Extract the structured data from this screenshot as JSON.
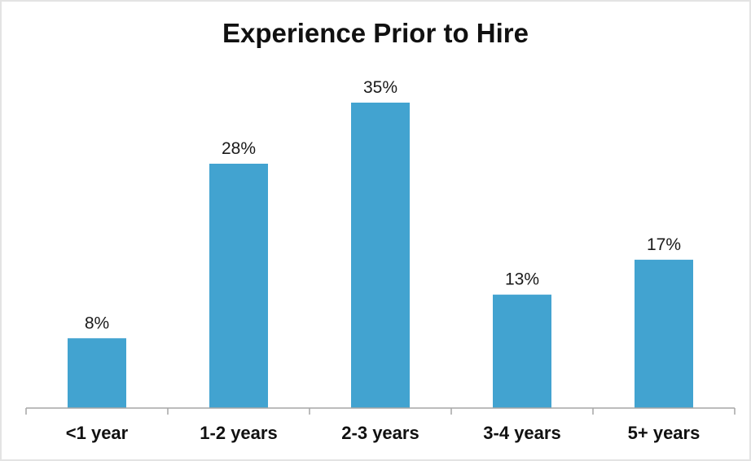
{
  "chart_data": {
    "type": "bar",
    "title": "Experience Prior to Hire",
    "xlabel": "",
    "ylabel": "",
    "categories": [
      "<1 year",
      "1-2 years",
      "2-3 years",
      "3-4 years",
      "5+ years"
    ],
    "values": [
      8,
      28,
      35,
      13,
      17
    ],
    "data_labels": [
      "8%",
      "28%",
      "35%",
      "13%",
      "17%"
    ],
    "ylim": [
      0,
      35
    ],
    "grid": false,
    "legend": "none",
    "bar_color": "#42a3d0",
    "axis_color": "#a6a6a6"
  }
}
